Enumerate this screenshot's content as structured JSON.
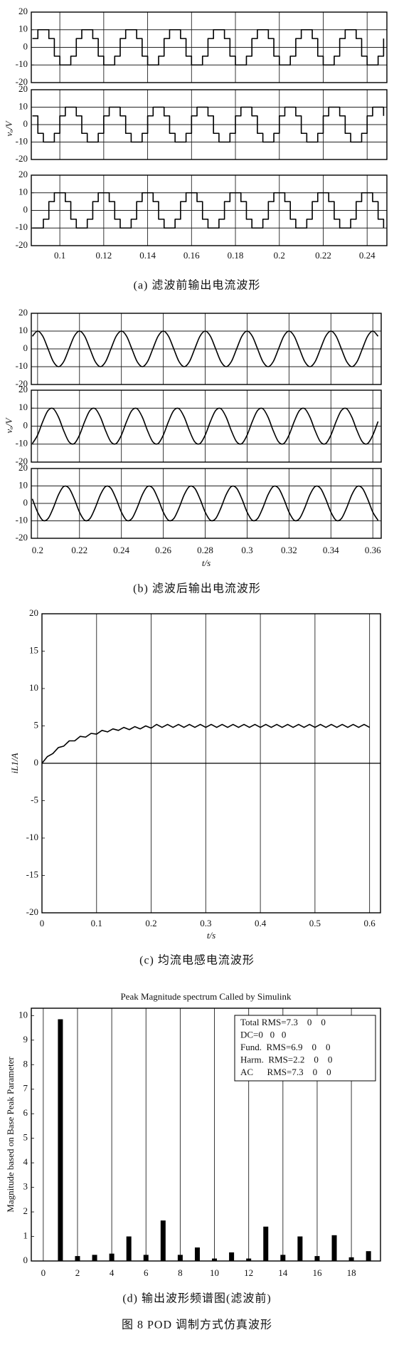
{
  "chart_data": [
    {
      "type": "line",
      "drawstyle": "steps-post",
      "ylabel": "vₒ/V",
      "caption": "(a)   滤波前输出电流波形",
      "xlim": [
        0.087,
        0.249
      ],
      "ylim": [
        -20,
        20
      ],
      "xticks": [
        0.1,
        0.12,
        0.14,
        0.16,
        0.18,
        0.2,
        0.22,
        0.24
      ],
      "yticks": [
        -20,
        -10,
        0,
        10,
        20
      ],
      "grid": true,
      "x": [
        0.0875,
        0.09,
        0.0925,
        0.095,
        0.0975,
        0.1,
        0.1025,
        0.105,
        0.1075,
        0.11,
        0.1125,
        0.115,
        0.1175,
        0.12,
        0.1225,
        0.125,
        0.1275,
        0.13,
        0.1325,
        0.135,
        0.1375,
        0.14,
        0.1425,
        0.145,
        0.1475,
        0.15,
        0.1525,
        0.155,
        0.1575,
        0.16,
        0.1625,
        0.165,
        0.1675,
        0.17,
        0.1725,
        0.175,
        0.1775,
        0.18,
        0.1825,
        0.185,
        0.1875,
        0.19,
        0.1925,
        0.195,
        0.1975,
        0.2,
        0.2025,
        0.205,
        0.2075,
        0.21,
        0.2125,
        0.215,
        0.2175,
        0.22,
        0.2225,
        0.225,
        0.2275,
        0.23,
        0.2325,
        0.235,
        0.2375,
        0.24,
        0.2425,
        0.245,
        0.2475
      ],
      "series": [
        {
          "color": "#000000",
          "values": [
            5,
            10,
            10,
            5,
            -5,
            -10,
            -10,
            -5,
            5,
            10,
            10,
            5,
            -5,
            -10,
            -10,
            -5,
            5,
            10,
            10,
            5,
            -5,
            -10,
            -10,
            -5,
            5,
            10,
            10,
            5,
            -5,
            -10,
            -10,
            -5,
            5,
            10,
            10,
            5,
            -5,
            -10,
            -10,
            -5,
            5,
            10,
            10,
            5,
            -5,
            -10,
            -10,
            -5,
            5,
            10,
            10,
            5,
            -5,
            -10,
            -10,
            -5,
            5,
            10,
            10,
            5,
            -5,
            -10,
            -10,
            -5,
            5
          ]
        },
        {
          "color": "#000000",
          "values": [
            5,
            -5,
            -10,
            -10,
            -5,
            5,
            10,
            10,
            5,
            -5,
            -10,
            -10,
            -5,
            5,
            10,
            10,
            5,
            -5,
            -10,
            -10,
            -5,
            5,
            10,
            10,
            5,
            -5,
            -10,
            -10,
            -5,
            5,
            10,
            10,
            5,
            -5,
            -10,
            -10,
            -5,
            5,
            10,
            10,
            5,
            -5,
            -10,
            -10,
            -5,
            5,
            10,
            10,
            5,
            -5,
            -10,
            -10,
            -5,
            5,
            10,
            10,
            5,
            -5,
            -10,
            -10,
            -5,
            5,
            10,
            10,
            5
          ]
        },
        {
          "color": "#000000",
          "values": [
            -10,
            -10,
            -5,
            5,
            10,
            10,
            5,
            -5,
            -10,
            -10,
            -5,
            5,
            10,
            10,
            5,
            -5,
            -10,
            -10,
            -5,
            5,
            10,
            10,
            5,
            -5,
            -10,
            -10,
            -5,
            5,
            10,
            10,
            5,
            -5,
            -10,
            -10,
            -5,
            5,
            10,
            10,
            5,
            -5,
            -10,
            -10,
            -5,
            5,
            10,
            10,
            5,
            -5,
            -10,
            -10,
            -5,
            5,
            10,
            10,
            5,
            -5,
            -10,
            -10,
            -5,
            5,
            10,
            10,
            5,
            -5,
            -10
          ]
        }
      ]
    },
    {
      "type": "line",
      "interpolation": "smooth",
      "xlabel": "t/s",
      "ylabel": "vₒ/V",
      "caption": "(b)   滤波后输出电流波形",
      "xlim": [
        0.197,
        0.364
      ],
      "ylim": [
        -20,
        20
      ],
      "xticks": [
        0.2,
        0.22,
        0.24,
        0.26,
        0.28,
        0.3,
        0.32,
        0.34,
        0.36
      ],
      "yticks": [
        -20,
        -10,
        0,
        10,
        20
      ],
      "grid": true,
      "x": [
        0.1975,
        0.2,
        0.2025,
        0.205,
        0.2075,
        0.21,
        0.2125,
        0.215,
        0.2175,
        0.22,
        0.2225,
        0.225,
        0.2275,
        0.23,
        0.2325,
        0.235,
        0.2375,
        0.24,
        0.2425,
        0.245,
        0.2475,
        0.25,
        0.2525,
        0.255,
        0.2575,
        0.26,
        0.2625,
        0.265,
        0.2675,
        0.27,
        0.2725,
        0.275,
        0.2775,
        0.28,
        0.2825,
        0.285,
        0.2875,
        0.29,
        0.2925,
        0.295,
        0.2975,
        0.3,
        0.3025,
        0.305,
        0.3075,
        0.31,
        0.3125,
        0.315,
        0.3175,
        0.32,
        0.3225,
        0.325,
        0.3275,
        0.33,
        0.3325,
        0.335,
        0.3375,
        0.34,
        0.3425,
        0.345,
        0.3475,
        0.35,
        0.3525,
        0.355,
        0.3575,
        0.36,
        0.3625
      ],
      "series": [
        {
          "color": "#000000",
          "values": [
            7.1,
            10,
            7.1,
            0,
            -7.1,
            -10,
            -7.1,
            0,
            7.1,
            10,
            7.1,
            0,
            -7.1,
            -10,
            -7.1,
            0,
            7.1,
            10,
            7.1,
            0,
            -7.1,
            -10,
            -7.1,
            0,
            7.1,
            10,
            7.1,
            0,
            -7.1,
            -10,
            -7.1,
            0,
            7.1,
            10,
            7.1,
            0,
            -7.1,
            -10,
            -7.1,
            0,
            7.1,
            10,
            7.1,
            0,
            -7.1,
            -10,
            -7.1,
            0,
            7.1,
            10,
            7.1,
            0,
            -7.1,
            -10,
            -7.1,
            0,
            7.1,
            10,
            7.1,
            0,
            -7.1,
            -10,
            -7.1,
            0,
            7.1,
            10,
            7.1
          ]
        },
        {
          "color": "#000000",
          "values": [
            -9.7,
            -5,
            2.6,
            8.7,
            9.7,
            5,
            -2.6,
            -8.7,
            -9.7,
            -5,
            2.6,
            8.7,
            9.7,
            5,
            -2.6,
            -8.7,
            -9.7,
            -5,
            2.6,
            8.7,
            9.7,
            5,
            -2.6,
            -8.7,
            -9.7,
            -5,
            2.6,
            8.7,
            9.7,
            5,
            -2.6,
            -8.7,
            -9.7,
            -5,
            2.6,
            8.7,
            9.7,
            5,
            -2.6,
            -8.7,
            -9.7,
            -5,
            2.6,
            8.7,
            9.7,
            5,
            -2.6,
            -8.7,
            -9.7,
            -5,
            2.6,
            8.7,
            9.7,
            5,
            -2.6,
            -8.7,
            -9.7,
            -5,
            2.6,
            8.7,
            9.7,
            5,
            -2.6,
            -8.7,
            -9.7,
            -5,
            2.6
          ]
        },
        {
          "color": "#000000",
          "values": [
            2.6,
            -5,
            -9.7,
            -8.7,
            -2.6,
            5,
            9.7,
            8.7,
            2.6,
            -5,
            -9.7,
            -8.7,
            -2.6,
            5,
            9.7,
            8.7,
            2.6,
            -5,
            -9.7,
            -8.7,
            -2.6,
            5,
            9.7,
            8.7,
            2.6,
            -5,
            -9.7,
            -8.7,
            -2.6,
            5,
            9.7,
            8.7,
            2.6,
            -5,
            -9.7,
            -8.7,
            -2.6,
            5,
            9.7,
            8.7,
            2.6,
            -5,
            -9.7,
            -8.7,
            -2.6,
            5,
            9.7,
            8.7,
            2.6,
            -5,
            -9.7,
            -8.7,
            -2.6,
            5,
            9.7,
            8.7,
            2.6,
            -5,
            -9.7,
            -8.7,
            -2.6,
            5,
            9.7,
            8.7,
            2.6,
            -5,
            -9.7
          ]
        }
      ]
    },
    {
      "type": "line",
      "xlabel": "t/s",
      "ylabel": "iL1/A",
      "caption": "(c)   均流电感电流波形",
      "xlim": [
        0,
        0.62
      ],
      "ylim": [
        -20,
        20
      ],
      "xticks": [
        0,
        0.1,
        0.2,
        0.3,
        0.4,
        0.5,
        0.6
      ],
      "yticks": [
        -20,
        -15,
        -10,
        -5,
        0,
        5,
        10,
        15,
        20
      ],
      "grid": "x",
      "zero_line": true,
      "x": [
        0,
        0.01,
        0.02,
        0.03,
        0.04,
        0.05,
        0.06,
        0.07,
        0.08,
        0.09,
        0.1,
        0.11,
        0.12,
        0.13,
        0.14,
        0.15,
        0.16,
        0.17,
        0.18,
        0.19,
        0.2,
        0.21,
        0.22,
        0.23,
        0.24,
        0.25,
        0.26,
        0.27,
        0.28,
        0.29,
        0.3,
        0.31,
        0.32,
        0.33,
        0.34,
        0.35,
        0.36,
        0.37,
        0.38,
        0.39,
        0.4,
        0.41,
        0.42,
        0.43,
        0.44,
        0.45,
        0.46,
        0.47,
        0.48,
        0.49,
        0.5,
        0.51,
        0.52,
        0.53,
        0.54,
        0.55,
        0.56,
        0.57,
        0.58,
        0.59,
        0.6
      ],
      "series": [
        {
          "color": "#000000",
          "values": [
            0,
            0.9,
            1.3,
            2.1,
            2.3,
            3.0,
            3.0,
            3.6,
            3.5,
            4.0,
            3.9,
            4.4,
            4.2,
            4.6,
            4.4,
            4.8,
            4.5,
            4.9,
            4.6,
            5.0,
            4.7,
            5.2,
            4.8,
            5.2,
            4.8,
            5.2,
            4.8,
            5.2,
            4.8,
            5.2,
            4.8,
            5.2,
            4.8,
            5.2,
            4.8,
            5.2,
            4.8,
            5.2,
            4.8,
            5.2,
            4.8,
            5.2,
            4.8,
            5.2,
            4.8,
            5.2,
            4.8,
            5.2,
            4.8,
            5.2,
            4.8,
            5.2,
            4.8,
            5.2,
            4.8,
            5.2,
            4.8,
            5.2,
            4.8,
            5.2,
            4.8
          ]
        }
      ]
    },
    {
      "type": "bar",
      "title": "Peak Magnitude spectrum Called by Simulink",
      "ylabel": "Magnitude based on Base Peak Parameter",
      "caption": "(d)   输出波形频谱图(滤波前)",
      "color": "#000000",
      "xlim": [
        -0.7,
        19.7
      ],
      "ylim": [
        0,
        10.3
      ],
      "xticks": [
        0,
        2,
        4,
        6,
        8,
        10,
        12,
        14,
        16,
        18
      ],
      "yticks": [
        0,
        1,
        2,
        3,
        4,
        5,
        6,
        7,
        8,
        9,
        10
      ],
      "grid": "x",
      "x": [
        1,
        2,
        3,
        4,
        5,
        6,
        7,
        8,
        9,
        10,
        11,
        12,
        13,
        14,
        15,
        16,
        17,
        18,
        19
      ],
      "values": [
        9.85,
        0.2,
        0.25,
        0.3,
        1.0,
        0.25,
        1.65,
        0.25,
        0.55,
        0.1,
        0.35,
        0.1,
        1.4,
        0.25,
        1.0,
        0.2,
        1.05,
        0.15,
        0.4
      ],
      "annotations": [
        "Total RMS=7.3    0    0",
        "DC=0   0   0",
        "Fund.  RMS=6.9    0    0",
        "Harm.  RMS=2.2    0    0",
        "AC      RMS=7.3    0    0"
      ]
    }
  ],
  "figure_caption": "图 8    POD 调制方式仿真波形"
}
